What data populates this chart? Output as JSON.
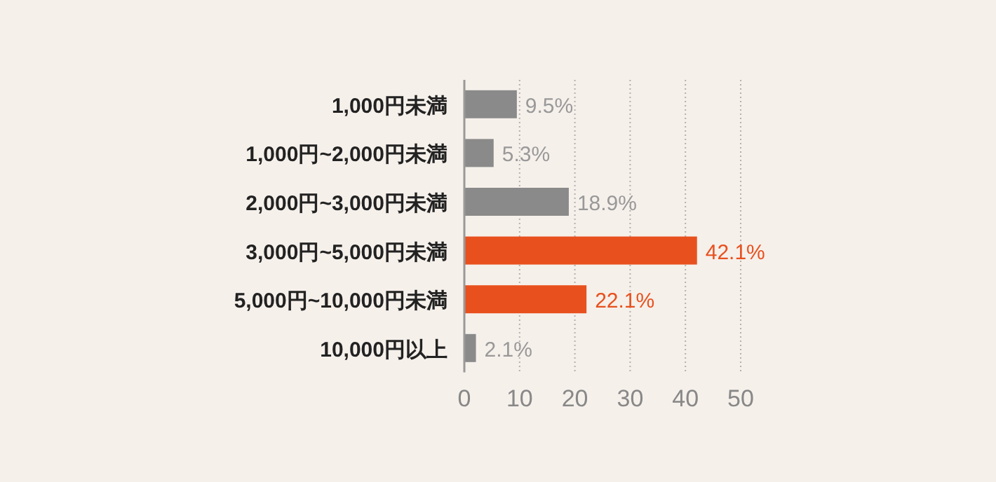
{
  "chart_data": {
    "type": "bar",
    "orientation": "horizontal",
    "categories": [
      "1,000円未満",
      "1,000円~2,000円未満",
      "2,000円~3,000円未満",
      "3,000円~5,000円未満",
      "5,000円~10,000円未満",
      "10,000円以上"
    ],
    "values": [
      9.5,
      5.3,
      18.9,
      42.1,
      22.1,
      2.1
    ],
    "colors": [
      "#8a8a8a",
      "#8a8a8a",
      "#8a8a8a",
      "#e8511e",
      "#e8511e",
      "#8a8a8a"
    ],
    "value_labels": [
      "9.5%",
      "5.3%",
      "18.9%",
      "42.1%",
      "22.1%",
      "2.1%"
    ],
    "xlim": [
      0,
      50
    ],
    "xticks": [
      0,
      10,
      20,
      30,
      40,
      50
    ],
    "grid": "x"
  }
}
